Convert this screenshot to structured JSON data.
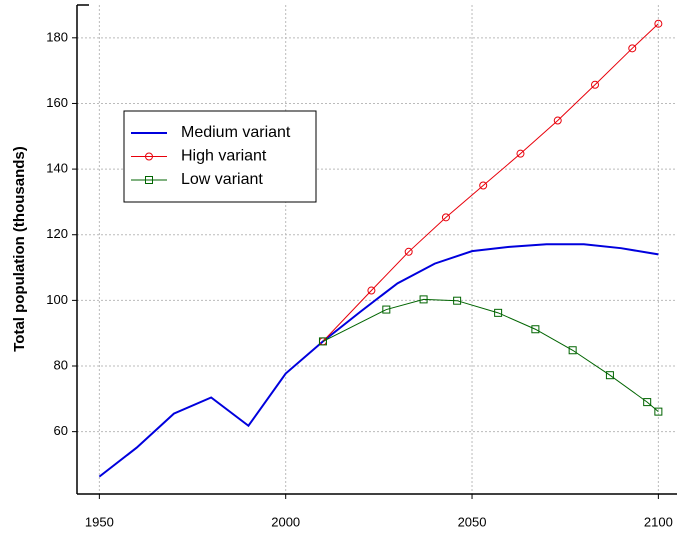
{
  "chart_data": {
    "type": "line",
    "ylabel": "Total population (thousands)",
    "xlim": [
      1944,
      2105
    ],
    "ylim": [
      41,
      190
    ],
    "xticks": [
      1950,
      2000,
      2050,
      2100
    ],
    "yticks": [
      60,
      80,
      100,
      120,
      140,
      160,
      180
    ],
    "grid": true,
    "legend": "upper left",
    "series": [
      {
        "name": "Medium variant",
        "color": "#0000dd",
        "marker": "none",
        "x": [
          1950,
          1960,
          1970,
          1980,
          1990,
          2000,
          2010,
          2020,
          2030,
          2040,
          2050,
          2060,
          2070,
          2080,
          2090,
          2100
        ],
        "values": [
          46.3,
          55.1,
          65.5,
          70.4,
          61.8,
          77.7,
          87.5,
          96.5,
          105.2,
          111.2,
          115,
          116.3,
          117.1,
          117.1,
          115.9,
          114
        ]
      },
      {
        "name": "High variant",
        "color": "#e8000b",
        "marker": "circle",
        "x": [
          2010,
          2023,
          2033,
          2043,
          2053,
          2063,
          2073,
          2083,
          2093,
          2100
        ],
        "values": [
          87.5,
          103,
          114.8,
          125.3,
          135,
          144.7,
          154.8,
          165.7,
          176.8,
          184.3
        ]
      },
      {
        "name": "Low variant",
        "color": "#006400",
        "marker": "square",
        "x": [
          2010,
          2027,
          2037,
          2046,
          2057,
          2067,
          2077,
          2087,
          2097,
          2100
        ],
        "values": [
          87.5,
          97.2,
          100.3,
          99.9,
          96.2,
          91.2,
          84.8,
          77.2,
          69,
          66.1
        ]
      }
    ]
  }
}
